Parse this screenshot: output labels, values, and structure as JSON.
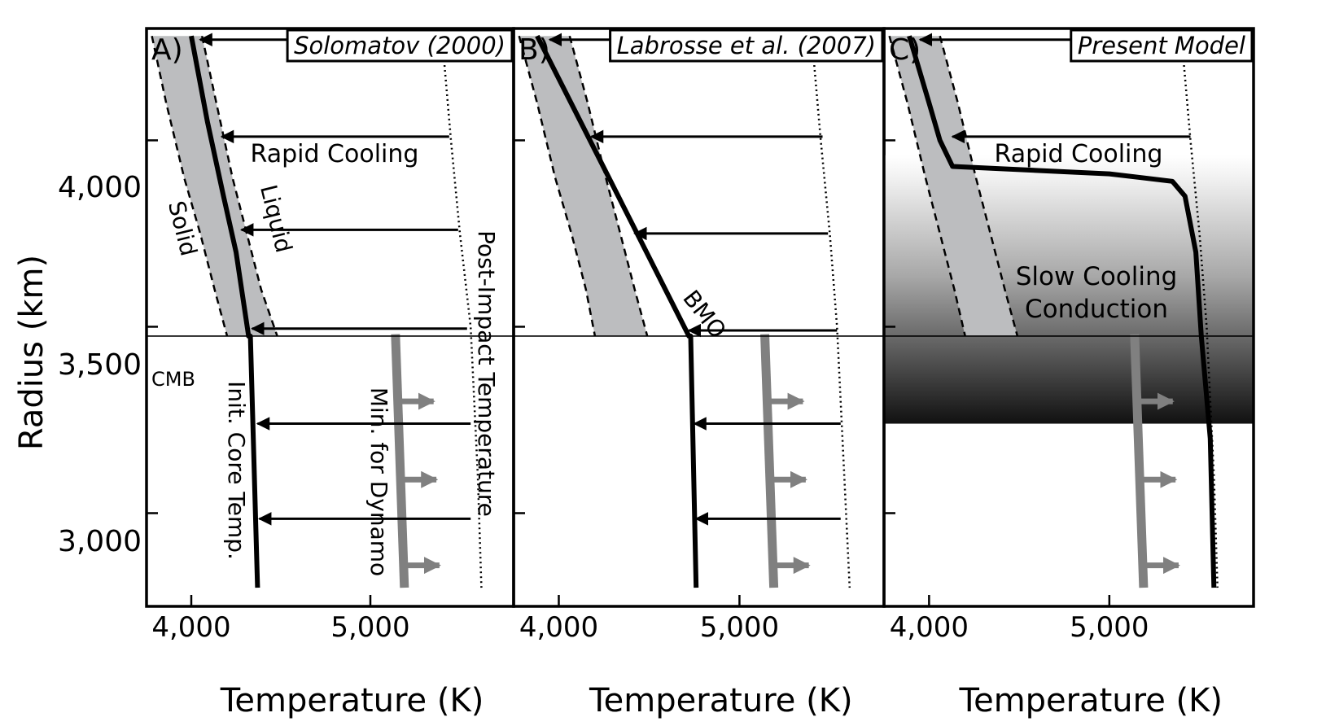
{
  "figure": {
    "y_axis_label": "Radius (km)",
    "y_ticks": [
      {
        "value": 4000,
        "label": "4,000"
      },
      {
        "value": 3500,
        "label": "3,500"
      },
      {
        "value": 3000,
        "label": "3,000"
      }
    ],
    "x_ticks": [
      {
        "value": 4000,
        "label": "4,000"
      },
      {
        "value": 5000,
        "label": "5,000"
      }
    ],
    "cmb_label": "CMB",
    "colors": {
      "band": "#bcbdbf",
      "profile": "#000000",
      "dynamo": "#808080",
      "frame": "#000000"
    }
  },
  "chart_data": [
    {
      "type": "line",
      "panel_letter": "A)",
      "title": "Solomatov (2000)",
      "xlabel": "Temperature (K)",
      "ylabel": "Radius (km)",
      "xlim": [
        3750,
        5800
      ],
      "ylim": [
        2750,
        4300
      ],
      "cmb_radius": 3475,
      "solidus": {
        "x": [
          3780,
          3860,
          3960,
          4050,
          4130,
          4200
        ],
        "y": [
          4280,
          4100,
          3900,
          3750,
          3600,
          3475
        ]
      },
      "liquidus": {
        "x": [
          4060,
          4140,
          4230,
          4310,
          4390,
          4480
        ],
        "y": [
          4280,
          4100,
          3900,
          3750,
          3600,
          3475
        ]
      },
      "profile": {
        "x": [
          4000,
          4090,
          4180,
          4250,
          4320,
          4330,
          4370
        ],
        "y": [
          4280,
          4050,
          3850,
          3700,
          3475,
          3475,
          2800
        ]
      },
      "post_impact": {
        "x": [
          5400,
          5450,
          5500,
          5560,
          5600,
          5620
        ],
        "y": [
          4280,
          4000,
          3750,
          3500,
          3100,
          2800
        ]
      },
      "dynamo": {
        "x": [
          5140,
          5190
        ],
        "y": [
          3480,
          2800
        ]
      },
      "dynamo_arrows_y": [
        3300,
        3090,
        2860
      ],
      "cooling_arrows": [
        {
          "y": 4270,
          "x_from": 5360,
          "x_to": 4050
        },
        {
          "y": 4010,
          "x_from": 5440,
          "x_to": 4170
        },
        {
          "y": 3760,
          "x_from": 5490,
          "x_to": 4280
        },
        {
          "y": 3495,
          "x_from": 5540,
          "x_to": 4340
        },
        {
          "y": 3240,
          "x_from": 5560,
          "x_to": 4370
        },
        {
          "y": 2985,
          "x_from": 5560,
          "x_to": 4380
        }
      ],
      "annotations": {
        "rapid_cooling": "Rapid Cooling",
        "solid": "Solid",
        "liquid": "Liquid",
        "post_impact": "Post-Impact Temperature",
        "dynamo": "Min. for Dynamo",
        "core_temp": "Init. Core Temp."
      }
    },
    {
      "type": "line",
      "panel_letter": "B)",
      "title": "Labrosse et al. (2007)",
      "xlabel": "Temperature (K)",
      "xlim": [
        3750,
        5800
      ],
      "ylim": [
        2750,
        4300
      ],
      "cmb_radius": 3475,
      "solidus": {
        "x": [
          3780,
          3880,
          3980,
          4070,
          4150,
          4200
        ],
        "y": [
          4280,
          4100,
          3900,
          3750,
          3600,
          3475
        ]
      },
      "liquidus": {
        "x": [
          4060,
          4160,
          4260,
          4340,
          4420,
          4490
        ],
        "y": [
          4280,
          4100,
          3900,
          3750,
          3600,
          3475
        ]
      },
      "profile": {
        "x": [
          3880,
          4350,
          4720,
          4730,
          4760
        ],
        "y": [
          4280,
          3830,
          3475,
          3475,
          2800
        ]
      },
      "post_impact": {
        "x": [
          5400,
          5450,
          5500,
          5540,
          5580,
          5610
        ],
        "y": [
          4280,
          4000,
          3750,
          3500,
          3100,
          2800
        ]
      },
      "dynamo": {
        "x": [
          5140,
          5190
        ],
        "y": [
          3480,
          2800
        ]
      },
      "dynamo_arrows_y": [
        3300,
        3090,
        2860
      ],
      "cooling_arrows": [
        {
          "y": 4270,
          "x_from": 5380,
          "x_to": 3950
        },
        {
          "y": 4010,
          "x_from": 5460,
          "x_to": 4180
        },
        {
          "y": 3750,
          "x_from": 5490,
          "x_to": 4420
        },
        {
          "y": 3490,
          "x_from": 5540,
          "x_to": 4720
        },
        {
          "y": 3240,
          "x_from": 5560,
          "x_to": 4750
        },
        {
          "y": 2985,
          "x_from": 5560,
          "x_to": 4760
        }
      ],
      "annotations": {
        "bmo": "BMO"
      }
    },
    {
      "type": "line",
      "panel_letter": "C)",
      "title": "Present Model",
      "xlabel": "Temperature (K)",
      "xlim": [
        3750,
        5800
      ],
      "ylim": [
        2750,
        4300
      ],
      "cmb_radius": 3475,
      "gradient_range_y": [
        3240,
        3960
      ],
      "solidus": {
        "x": [
          3780,
          3880,
          3980,
          4060,
          4140,
          4200
        ],
        "y": [
          4280,
          4100,
          3900,
          3750,
          3600,
          3475
        ]
      },
      "liquidus": {
        "x": [
          4060,
          4160,
          4260,
          4340,
          4420,
          4490
        ],
        "y": [
          4280,
          4100,
          3900,
          3750,
          3600,
          3475
        ]
      },
      "profile": {
        "x": [
          3890,
          4000,
          4060,
          4130,
          5000,
          5350,
          5420,
          5480,
          5510,
          5560,
          5580
        ],
        "y": [
          4280,
          4100,
          4000,
          3930,
          3910,
          3890,
          3850,
          3700,
          3475,
          3200,
          2800
        ]
      },
      "post_impact": {
        "x": [
          5400,
          5450,
          5500,
          5540,
          5580,
          5600
        ],
        "y": [
          4280,
          4000,
          3750,
          3500,
          3100,
          2800
        ]
      },
      "dynamo": {
        "x": [
          5140,
          5190
        ],
        "y": [
          3480,
          2800
        ]
      },
      "dynamo_arrows_y": [
        3300,
        3090,
        2860
      ],
      "cooling_arrows": [
        {
          "y": 4270,
          "x_from": 5380,
          "x_to": 3950
        },
        {
          "y": 4010,
          "x_from": 5450,
          "x_to": 4130
        }
      ],
      "annotations": {
        "rapid_cooling": "Rapid Cooling",
        "slow_cooling": "Slow Cooling",
        "conduction": "Conduction"
      }
    }
  ]
}
